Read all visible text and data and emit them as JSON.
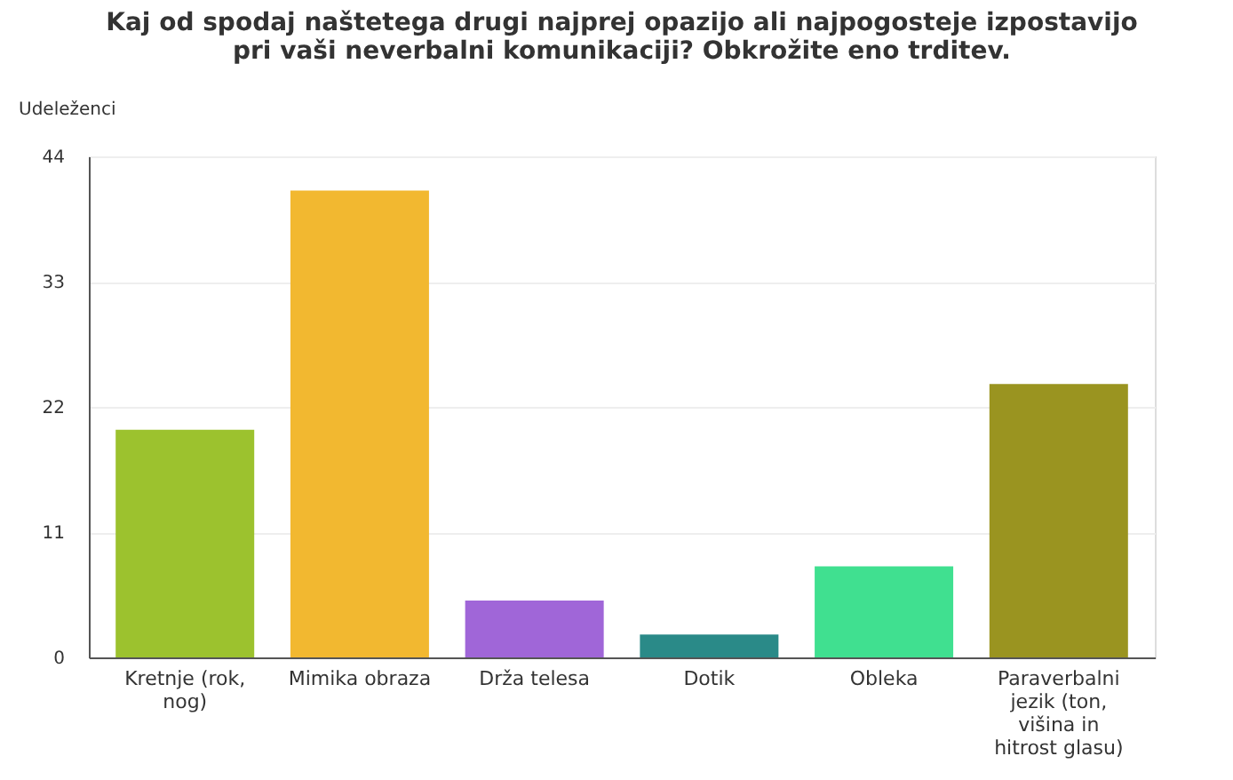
{
  "chart_data": {
    "type": "bar",
    "title": "Kaj od spodaj naštetega drugi najprej opazijo ali najpogosteje izpostavijo pri vaši neverbalni komunikaciji?     Obkrožite eno trditev.",
    "ylabel": "Udeleženci",
    "categories": [
      "Kretnje (rok, nog)",
      "Mimika obraza",
      "Drža telesa",
      "Dotik",
      "Obleka",
      "Paraverbalni jezik (ton, višina in hitrost glasu)"
    ],
    "values": [
      20,
      41,
      5,
      2,
      8,
      24
    ],
    "colors": [
      "#9cc22e",
      "#f2b830",
      "#a066d8",
      "#2a8a88",
      "#40e090",
      "#9a9420"
    ],
    "ylim": [
      0,
      44
    ],
    "yticks": [
      0,
      11,
      22,
      33,
      44
    ],
    "grid": "y",
    "legend": false
  }
}
